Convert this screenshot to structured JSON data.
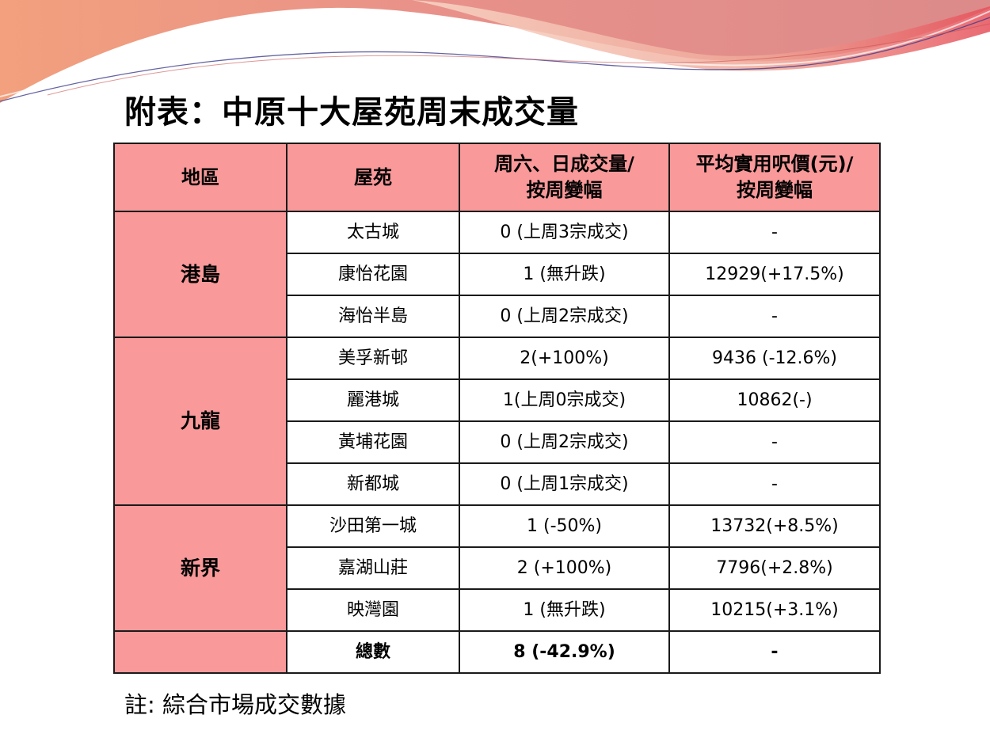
{
  "title": "附表：中原十大屋苑周末成交量",
  "colors": {
    "header_fill": "#f9999a",
    "region_fill": "#f9999a",
    "border": "#1a1a1a"
  },
  "table": {
    "headers": [
      "地區",
      "屋苑",
      "周六、日成交量/\n按周變幅",
      "平均實用呎價(元)/\n按周變幅"
    ],
    "groups": [
      {
        "region": "港島",
        "rows": [
          {
            "estate": "太古城",
            "volume": "0 (上周3宗成交)",
            "price": "-"
          },
          {
            "estate": "康怡花園",
            "volume": "1 (無升跌)",
            "price": "12929(+17.5%)"
          },
          {
            "estate": "海怡半島",
            "volume": "0 (上周2宗成交)",
            "price": "-"
          }
        ]
      },
      {
        "region": "九龍",
        "rows": [
          {
            "estate": "美孚新邨",
            "volume": "2(+100%)",
            "price": "9436 (-12.6%)"
          },
          {
            "estate": "麗港城",
            "volume": "1(上周0宗成交)",
            "price": "10862(-)"
          },
          {
            "estate": "黃埔花園",
            "volume": "0 (上周2宗成交)",
            "price": "-"
          },
          {
            "estate": "新都城",
            "volume": "0 (上周1宗成交)",
            "price": "-"
          }
        ]
      },
      {
        "region": "新界",
        "rows": [
          {
            "estate": "沙田第一城",
            "volume": "1 (-50%)",
            "price": "13732(+8.5%)"
          },
          {
            "estate": "嘉湖山莊",
            "volume": "2 (+100%)",
            "price": "7796(+2.8%)"
          },
          {
            "estate": "映灣園",
            "volume": "1 (無升跌)",
            "price": "10215(+3.1%)"
          }
        ]
      }
    ],
    "total": {
      "label": "總數",
      "volume": "8 (-42.9%)",
      "price": "-"
    }
  },
  "note": "註: 綜合市場成交數據"
}
